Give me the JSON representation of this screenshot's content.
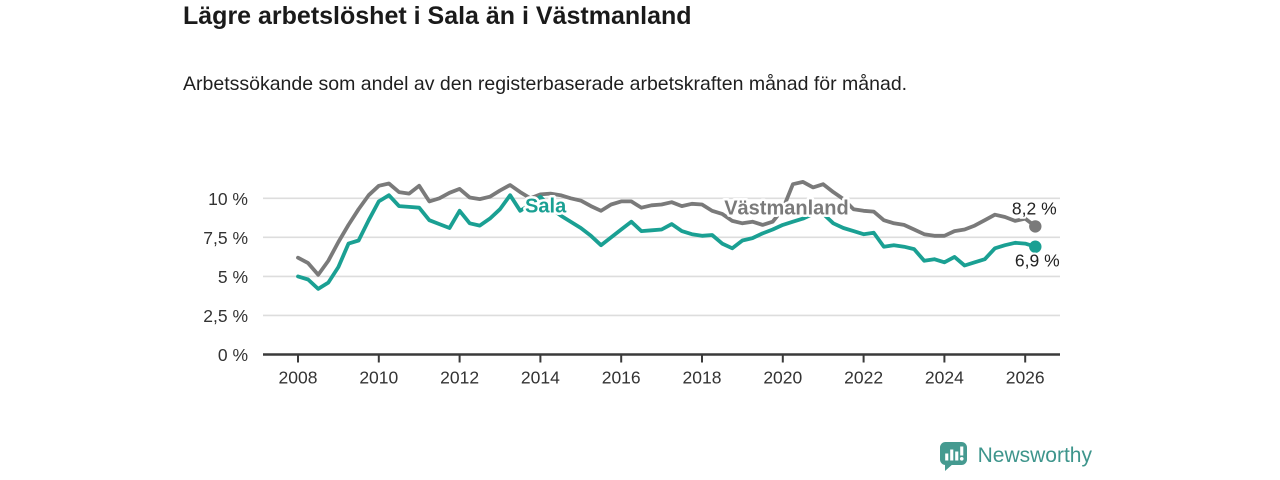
{
  "header": {
    "title": "Lägre arbetslöshet i Sala än i Västmanland",
    "subtitle": "Arbetssökande som andel av den registerbaserade arbetskraften månad för månad."
  },
  "chart_data": {
    "type": "line",
    "title": "Lägre arbetslöshet i Sala än i Västmanland",
    "subtitle": "Arbetssökande som andel av den registerbaserade arbetskraften månad för månad.",
    "xlabel": "",
    "ylabel": "",
    "grid": true,
    "legend_position": "inline-labels",
    "xlim": [
      2007.1,
      2026.9
    ],
    "ylim": [
      0,
      12.1
    ],
    "x": [
      2008,
      2008.25,
      2008.5,
      2008.75,
      2009,
      2009.25,
      2009.5,
      2009.75,
      2010,
      2010.25,
      2010.5,
      2010.75,
      2011,
      2011.25,
      2011.5,
      2011.75,
      2012,
      2012.25,
      2012.5,
      2012.75,
      2013,
      2013.25,
      2013.5,
      2013.75,
      2014,
      2014.25,
      2014.5,
      2014.75,
      2015,
      2015.25,
      2015.5,
      2015.75,
      2016,
      2016.25,
      2016.5,
      2016.75,
      2017,
      2017.25,
      2017.5,
      2017.75,
      2018,
      2018.25,
      2018.5,
      2018.75,
      2019,
      2019.25,
      2019.5,
      2019.75,
      2020,
      2020.25,
      2020.5,
      2020.75,
      2021,
      2021.25,
      2021.5,
      2021.75,
      2022,
      2022.25,
      2022.5,
      2022.75,
      2023,
      2023.25,
      2023.5,
      2023.75,
      2024,
      2024.25,
      2024.5,
      2024.75,
      2025,
      2025.25,
      2025.5,
      2025.75,
      2026,
      2026.25
    ],
    "series": [
      {
        "name": "Västmanland",
        "color": "#7a7a7a",
        "end_label": "8,2 %",
        "end_value": 8.2,
        "end_label_offset": [
          -1,
          -12
        ],
        "inline_label": {
          "x": 2018.55,
          "y": 8.95
        },
        "values": [
          6.2,
          5.85,
          5.1,
          6.0,
          7.2,
          8.3,
          9.3,
          10.2,
          10.8,
          10.95,
          10.4,
          10.3,
          10.8,
          9.8,
          10.0,
          10.35,
          10.6,
          10.05,
          9.95,
          10.1,
          10.5,
          10.85,
          10.4,
          10.0,
          10.25,
          10.3,
          10.2,
          10.0,
          9.85,
          9.5,
          9.2,
          9.6,
          9.8,
          9.8,
          9.4,
          9.55,
          9.6,
          9.75,
          9.5,
          9.65,
          9.6,
          9.2,
          9.0,
          8.55,
          8.4,
          8.5,
          8.3,
          8.5,
          9.3,
          10.9,
          11.05,
          10.7,
          10.9,
          10.4,
          9.95,
          9.3,
          9.2,
          9.15,
          8.6,
          8.4,
          8.3,
          8.0,
          7.7,
          7.6,
          7.6,
          7.9,
          8.0,
          8.25,
          8.6,
          8.95,
          8.8,
          8.55,
          8.7,
          8.2
        ]
      },
      {
        "name": "Sala",
        "color": "#1aa093",
        "end_label": "6,9 %",
        "end_value": 6.9,
        "end_label_offset": [
          2,
          20
        ],
        "inline_label": {
          "x": 2013.62,
          "y": 9.1
        },
        "values": [
          5.0,
          4.8,
          4.2,
          4.6,
          5.6,
          7.1,
          7.3,
          8.6,
          9.8,
          10.2,
          9.5,
          9.45,
          9.4,
          8.6,
          8.35,
          8.1,
          9.2,
          8.4,
          8.25,
          8.7,
          9.3,
          10.2,
          9.2,
          9.6,
          10.1,
          9.4,
          8.9,
          8.5,
          8.1,
          7.6,
          7.0,
          7.5,
          8.0,
          8.5,
          7.9,
          7.95,
          8.0,
          8.35,
          7.9,
          7.7,
          7.6,
          7.65,
          7.1,
          6.8,
          7.3,
          7.45,
          7.75,
          8.0,
          8.3,
          8.5,
          8.7,
          9.0,
          9.0,
          8.4,
          8.1,
          7.9,
          7.7,
          7.8,
          6.9,
          7.0,
          6.9,
          6.75,
          6.0,
          6.1,
          5.9,
          6.25,
          5.7,
          5.9,
          6.1,
          6.8,
          7.0,
          7.15,
          7.1,
          6.9
        ]
      }
    ],
    "yticks": [
      {
        "v": 0,
        "label": "0 %"
      },
      {
        "v": 2.5,
        "label": "2,5 %"
      },
      {
        "v": 5,
        "label": "5 %"
      },
      {
        "v": 7.5,
        "label": "7,5 %"
      },
      {
        "v": 10,
        "label": "10 %"
      }
    ],
    "xticks": [
      {
        "v": 2008,
        "label": "2008"
      },
      {
        "v": 2010,
        "label": "2010"
      },
      {
        "v": 2012,
        "label": "2012"
      },
      {
        "v": 2014,
        "label": "2014"
      },
      {
        "v": 2016,
        "label": "2016"
      },
      {
        "v": 2018,
        "label": "2018"
      },
      {
        "v": 2020,
        "label": "2020"
      },
      {
        "v": 2022,
        "label": "2022"
      },
      {
        "v": 2024,
        "label": "2024"
      },
      {
        "v": 2026,
        "label": "2026"
      }
    ]
  },
  "footer": {
    "brand": "Newsworthy",
    "brand_color": "#3e958c",
    "logo_icon": "bar-chart-speech-bubble-icon"
  }
}
